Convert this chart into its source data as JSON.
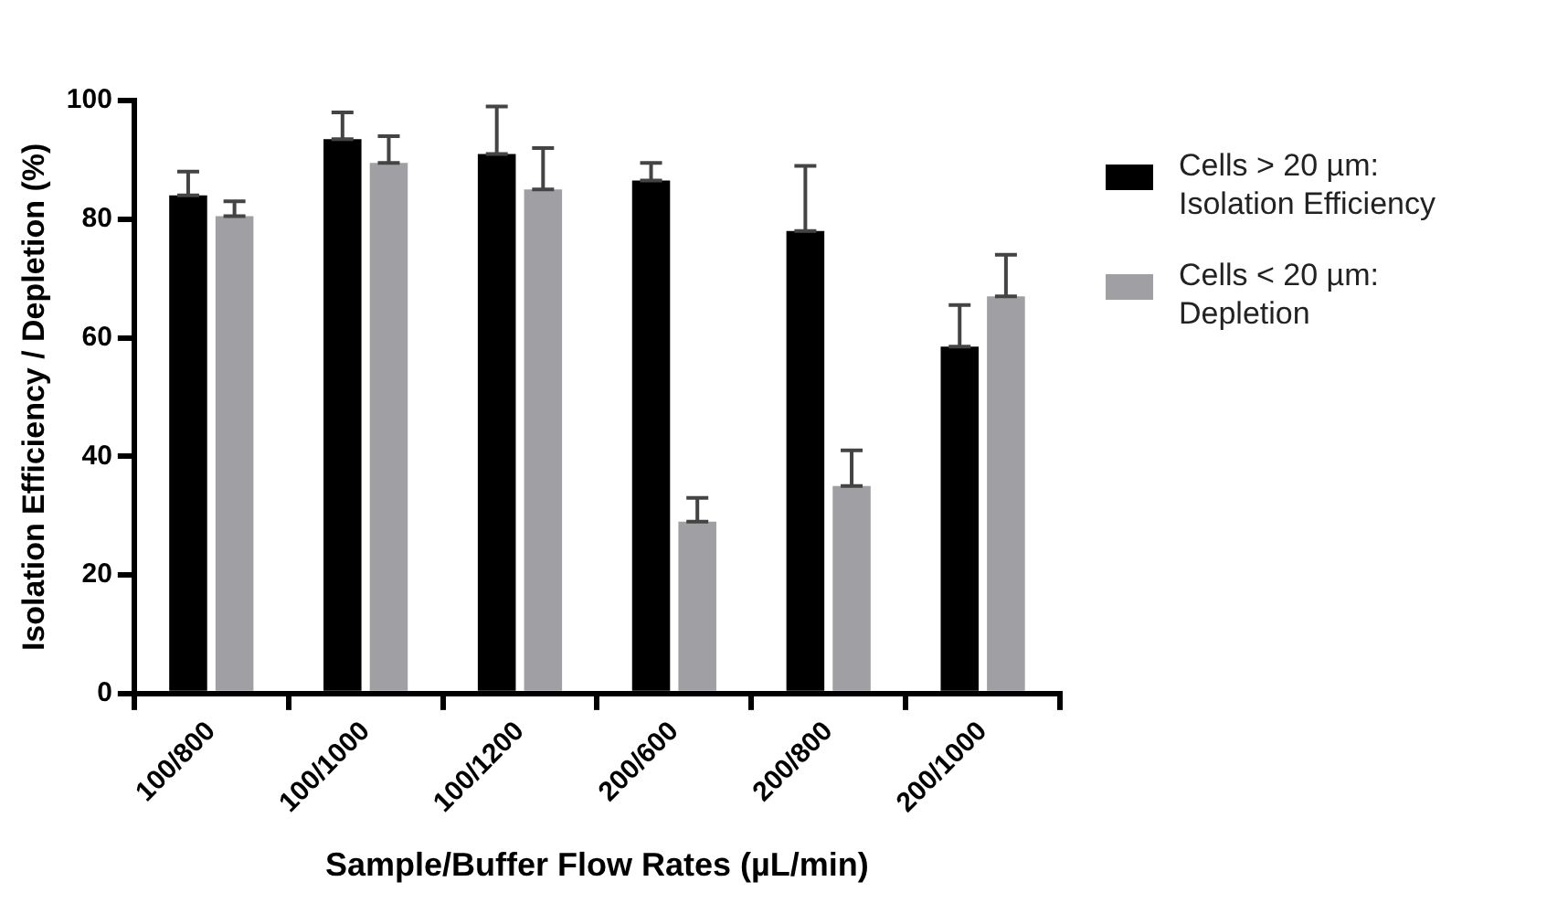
{
  "chart_data": {
    "type": "bar",
    "xlabel": "Sample/Buffer Flow Rates (µL/min)",
    "ylabel": "Isolation Efficiency / Depletion (%)",
    "categories": [
      "100/800",
      "100/1000",
      "100/1200",
      "200/600",
      "200/800",
      "200/1000"
    ],
    "series": [
      {
        "name": "Cells > 20 µm: Isolation Efficiency",
        "color": "#000000",
        "values": [
          84,
          93.5,
          91,
          86.5,
          78,
          58.5
        ],
        "errors": [
          [
            84,
            88
          ],
          [
            93.5,
            98
          ],
          [
            91,
            99
          ],
          [
            86.5,
            89.5
          ],
          [
            78,
            89
          ],
          [
            58.5,
            65.5
          ]
        ]
      },
      {
        "name": "Cells < 20 µm: Depletion",
        "color": "#a0a0a4",
        "values": [
          80.5,
          89.5,
          85,
          29,
          35,
          67
        ],
        "errors": [
          [
            80.5,
            83
          ],
          [
            89.5,
            94
          ],
          [
            85,
            92
          ],
          [
            29,
            33
          ],
          [
            35,
            41
          ],
          [
            67,
            74
          ]
        ]
      }
    ],
    "ylim": [
      0,
      100
    ],
    "yticks": [
      0,
      20,
      40,
      60,
      80,
      100
    ],
    "grid": false,
    "legend": "right"
  }
}
